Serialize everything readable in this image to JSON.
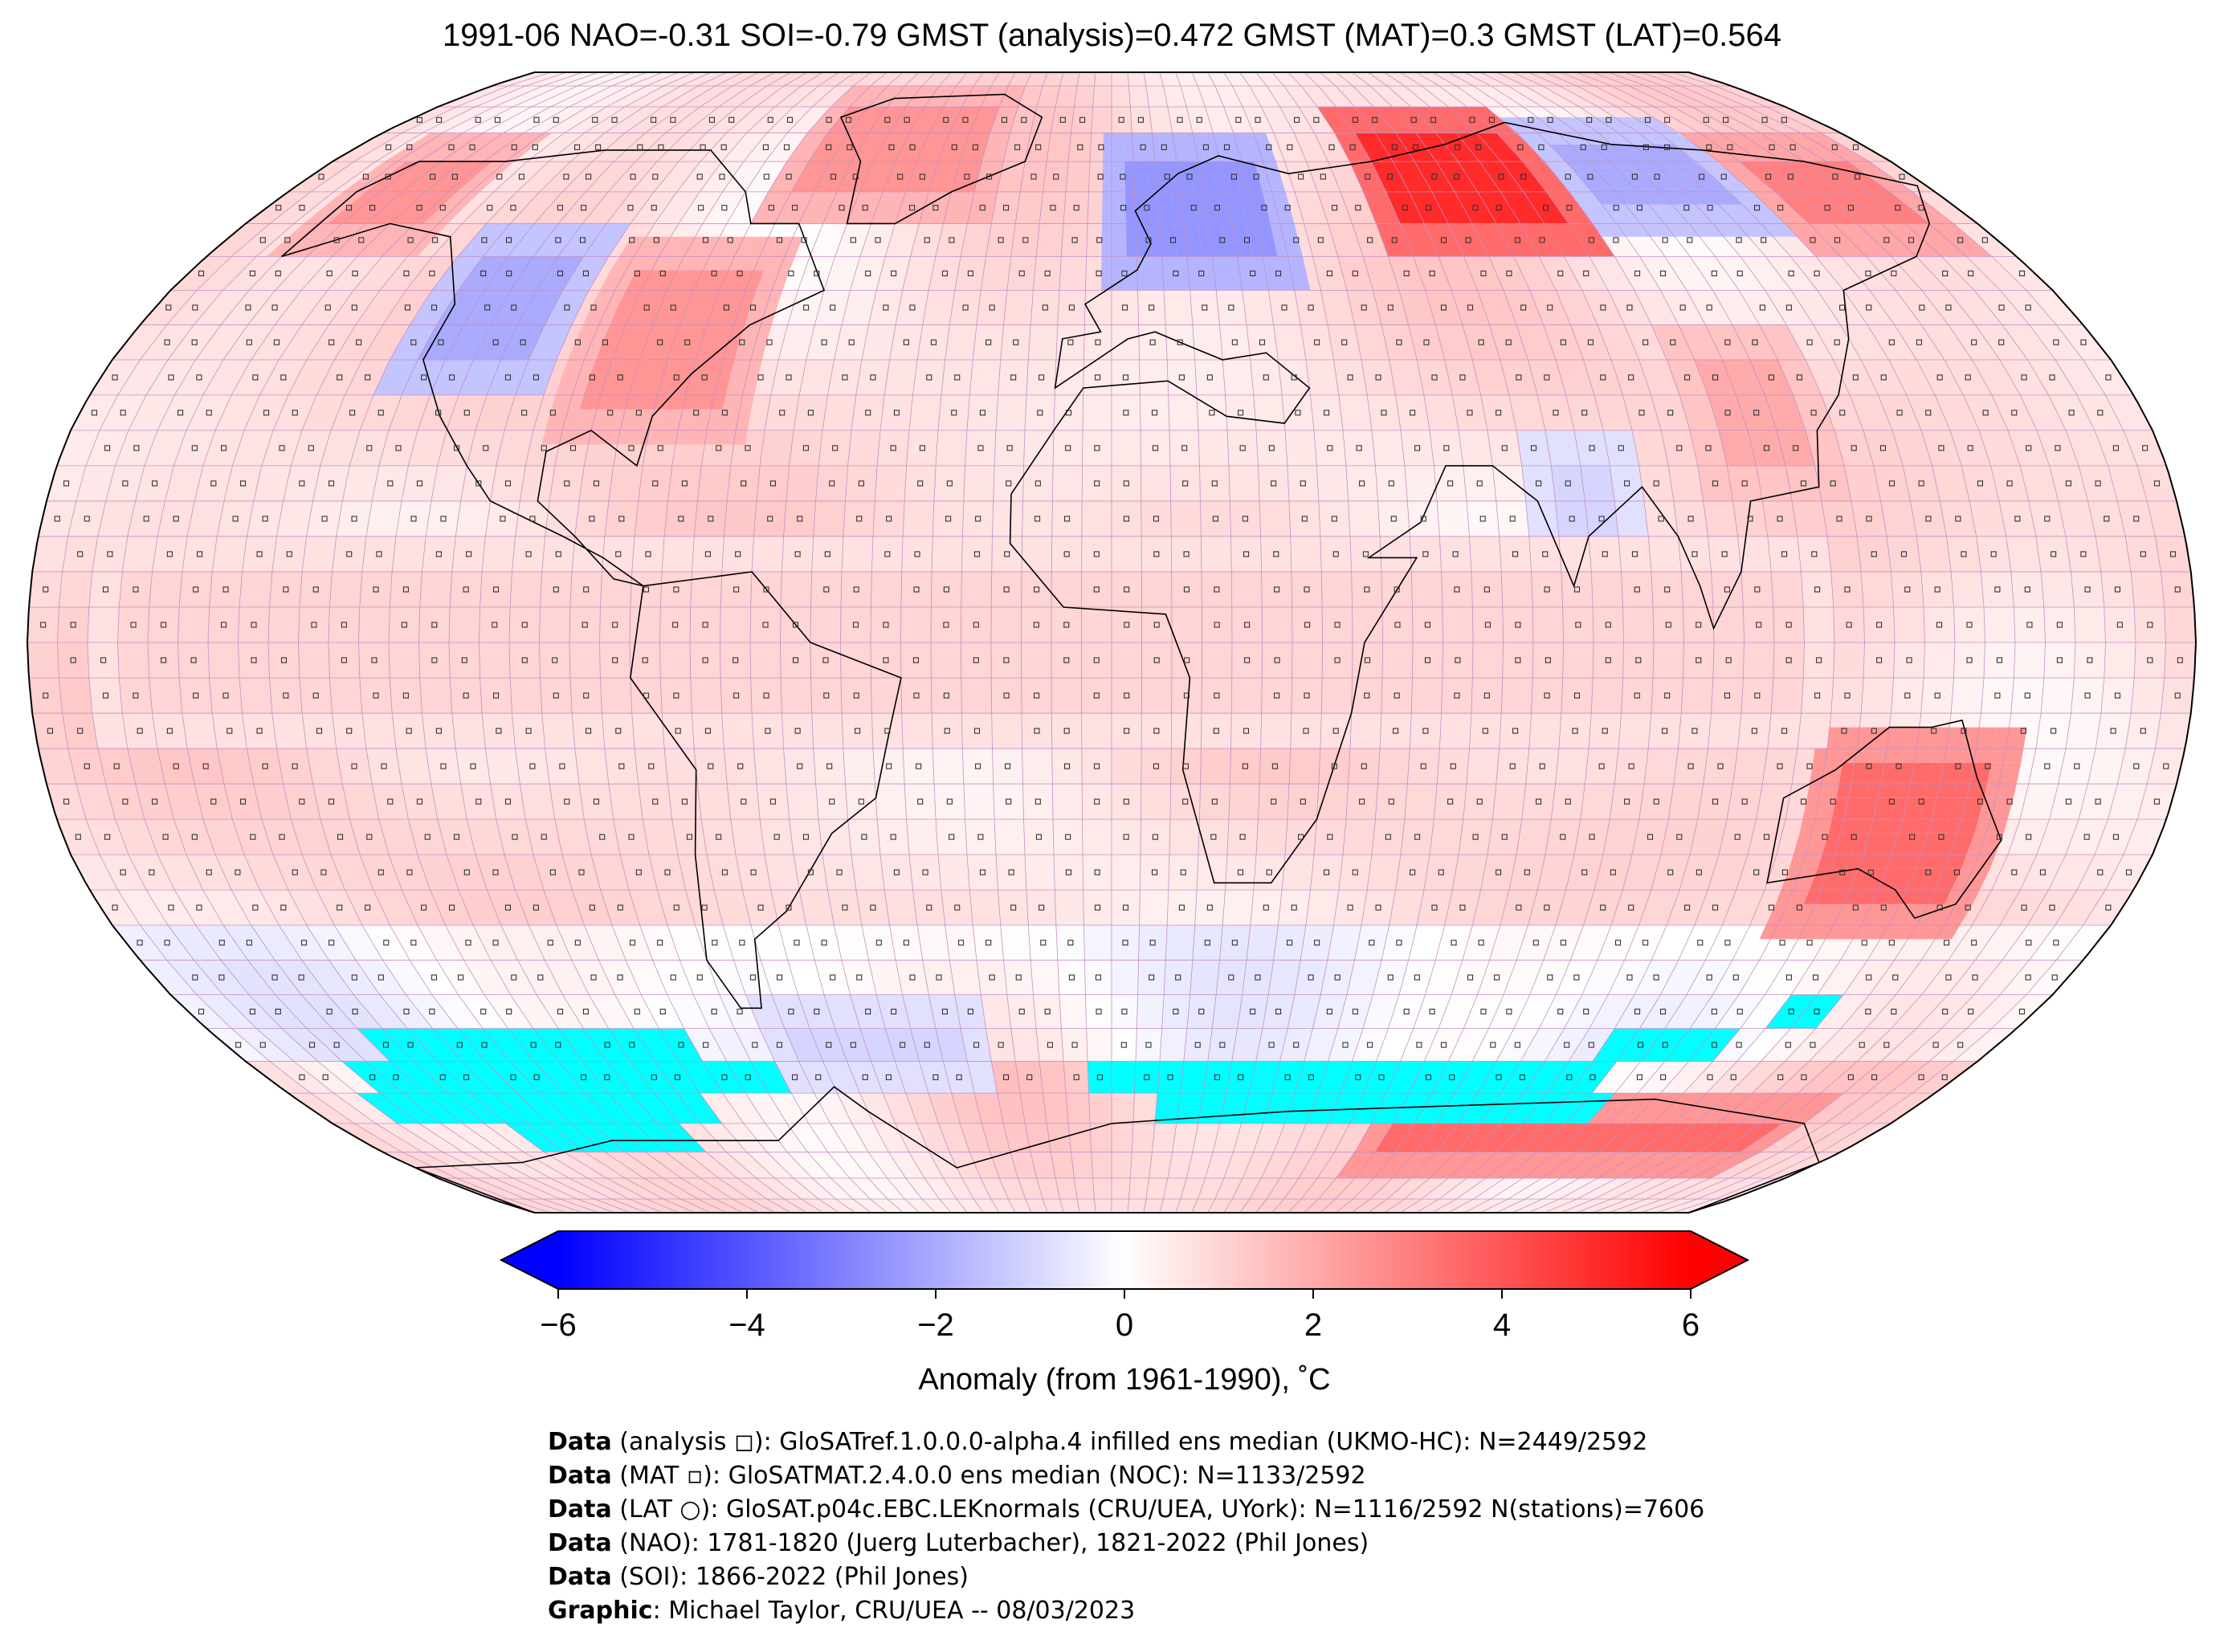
{
  "title": "1991-06 NAO=-0.31 SOI=-0.79 GMST (analysis)=0.472 GMST (MAT)=0.3 GMST (LAT)=0.564",
  "map": {
    "projection": "Robinson",
    "grid_resolution": "5° × 5°",
    "missing_color": "#00ffff",
    "anomaly_regions": [
      {
        "region": "Greenland / Baffin",
        "value": 2.5
      },
      {
        "region": "Alaska",
        "value": 2.5
      },
      {
        "region": "Western North America",
        "value": -2.0
      },
      {
        "region": "Eastern North America",
        "value": 2.5
      },
      {
        "region": "Northern Europe / Scandinavia",
        "value": -2.5
      },
      {
        "region": "Western Siberia",
        "value": 5.0
      },
      {
        "region": "Central Siberia",
        "value": -2.0
      },
      {
        "region": "Eastern Siberia / Far East",
        "value": 3.0
      },
      {
        "region": "China",
        "value": 2.0
      },
      {
        "region": "India",
        "value": -1.0
      },
      {
        "region": "Australia",
        "value": 3.5
      },
      {
        "region": "Tropical oceans",
        "value": 1.0
      },
      {
        "region": "Southern Ocean (Pacific sector)",
        "value": -1.0
      },
      {
        "region": "East Antarctica",
        "value": 3.5
      }
    ]
  },
  "colorbar": {
    "min": -6,
    "max": 6,
    "extend": "both",
    "colormap": "bwr",
    "tick_labels": [
      "−6",
      "−4",
      "−2",
      "0",
      "2",
      "4",
      "6"
    ],
    "label": "Anomaly (from 1961-1990), ˚C"
  },
  "credits": [
    {
      "head": "Data",
      "text": " (analysis ◻): GloSATref.1.0.0.0-alpha.4 infilled ens median (UKMO-HC): N=2449/2592"
    },
    {
      "head": "Data",
      "text": " (MAT ▫): GloSATMAT.2.4.0.0 ens median (NOC): N=1133/2592"
    },
    {
      "head": "Data",
      "text": " (LAT ○): GloSAT.p04c.EBC.LEKnormals (CRU/UEA, UYork): N=1116/2592 N(stations)=7606"
    },
    {
      "head": "Data",
      "text": " (NAO): 1781-1820 (Juerg Luterbacher), 1821-2022 (Phil Jones)"
    },
    {
      "head": "Data",
      "text": " (SOI): 1866-2022 (Phil Jones)"
    },
    {
      "head": "Graphic",
      "text": ": Michael Taylor, CRU/UEA -- 08/03/2023"
    }
  ]
}
